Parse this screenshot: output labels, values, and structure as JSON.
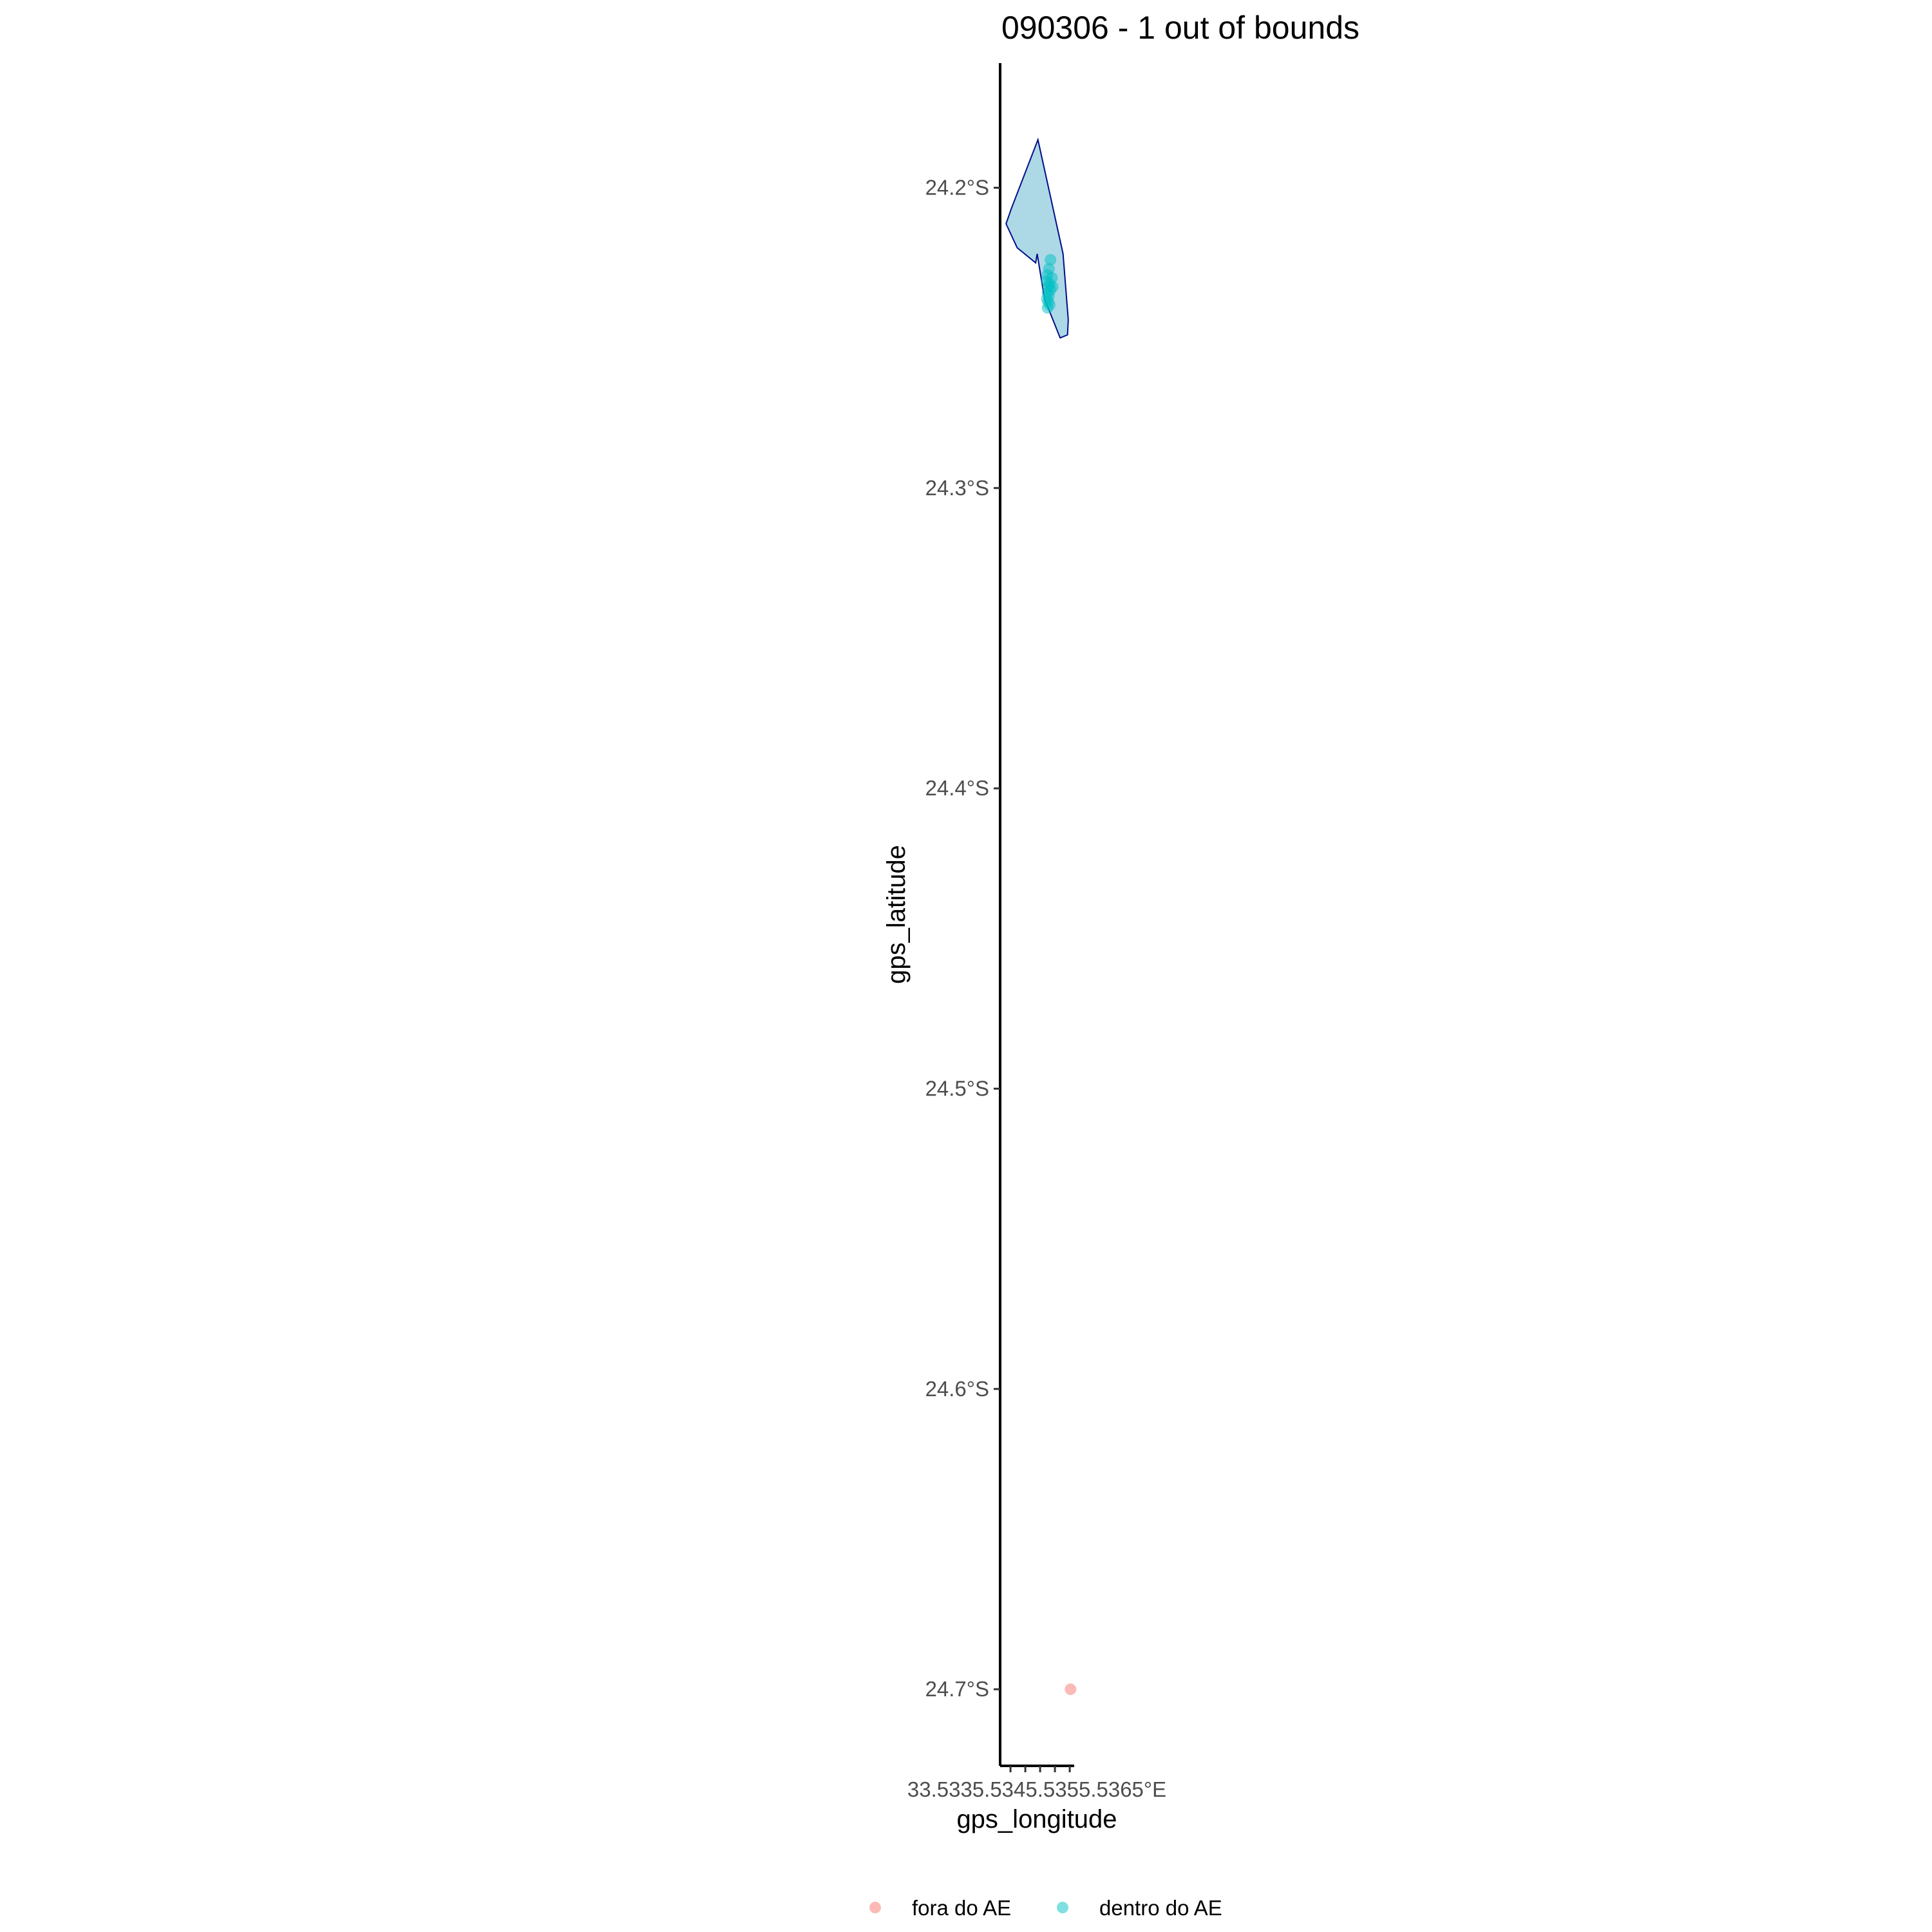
{
  "chart_data": {
    "type": "scatter",
    "title": "090306 - 1 out of bounds",
    "xlabel": "gps_longitude",
    "ylabel": "gps_latitude",
    "y_ticks": [
      {
        "value": -24.2,
        "label": "24.2°S"
      },
      {
        "value": -24.3,
        "label": "24.3°S"
      },
      {
        "value": -24.4,
        "label": "24.4°S"
      },
      {
        "value": -24.5,
        "label": "24.5°S"
      },
      {
        "value": -24.6,
        "label": "24.6°S"
      },
      {
        "value": -24.7,
        "label": "24.7°S"
      }
    ],
    "x_tick_labels_overlapped": "33.5335.5345.5355.5365°E",
    "xlim": [
      33.486,
      33.586
    ],
    "ylim": [
      -24.7255,
      -24.1585
    ],
    "grid": false,
    "legend_position": "bottom",
    "area_polygon": {
      "fill": "#add8e6",
      "stroke": "#000e8a",
      "points": [
        [
          33.537,
          -24.184
        ],
        [
          33.571,
          -24.222
        ],
        [
          33.578,
          -24.244
        ],
        [
          33.577,
          -24.249
        ],
        [
          33.567,
          -24.25
        ],
        [
          33.546,
          -24.237
        ],
        [
          33.536,
          -24.222
        ],
        [
          33.534,
          -24.225
        ],
        [
          33.509,
          -24.22
        ],
        [
          33.494,
          -24.212
        ],
        [
          33.501,
          -24.207
        ]
      ]
    },
    "series": [
      {
        "name": "fora do AE",
        "color": "#f8766d",
        "points": [
          [
            33.581,
            -24.7
          ]
        ]
      },
      {
        "name": "dentro do AE",
        "color": "#00bfc4",
        "points": [
          [
            33.554,
            -24.224
          ],
          [
            33.552,
            -24.227
          ],
          [
            33.55,
            -24.229
          ],
          [
            33.556,
            -24.23
          ],
          [
            33.549,
            -24.231
          ],
          [
            33.553,
            -24.232
          ],
          [
            33.551,
            -24.233
          ],
          [
            33.557,
            -24.233
          ],
          [
            33.55,
            -24.235
          ],
          [
            33.554,
            -24.234
          ],
          [
            33.552,
            -24.236
          ],
          [
            33.549,
            -24.237
          ],
          [
            33.551,
            -24.238
          ],
          [
            33.553,
            -24.239
          ],
          [
            33.55,
            -24.24
          ]
        ]
      }
    ]
  }
}
